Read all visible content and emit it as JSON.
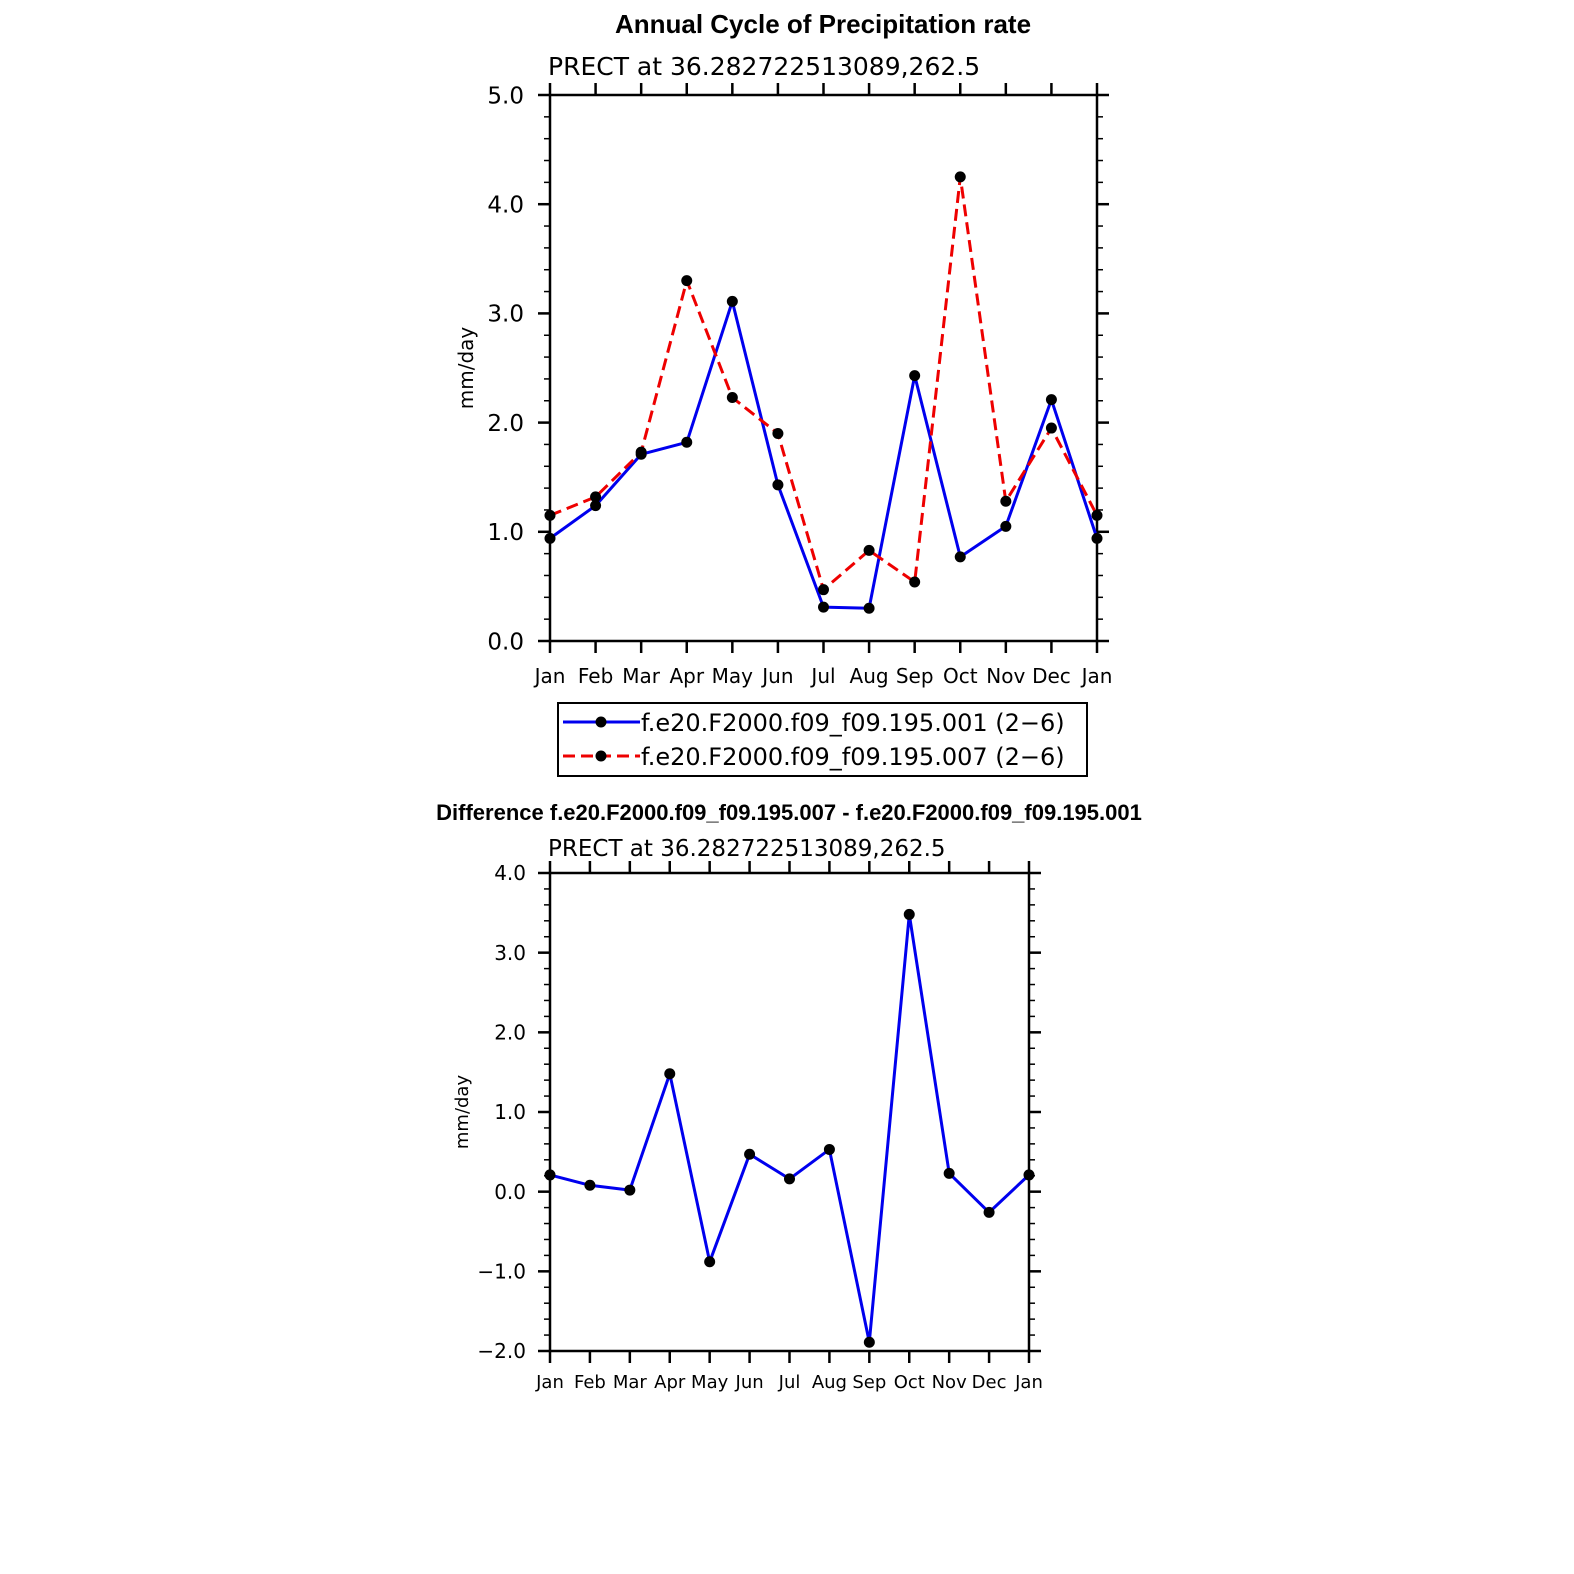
{
  "chart_data": [
    {
      "type": "line",
      "title": "Annual Cycle of Precipitation rate",
      "subtitle": "PRECT at 36.282722513089,262.5",
      "xlabel": "",
      "ylabel": "mm/day",
      "categories": [
        "Jan",
        "Feb",
        "Mar",
        "Apr",
        "May",
        "Jun",
        "Jul",
        "Aug",
        "Sep",
        "Oct",
        "Nov",
        "Dec",
        "Jan"
      ],
      "ylim": [
        0,
        5
      ],
      "yticks": [
        "0.0",
        "1.0",
        "2.0",
        "3.0",
        "4.0",
        "5.0"
      ],
      "series": [
        {
          "name": "f.e20.F2000.f09_f09.195.001",
          "legend_label": "f.e20.F2000.f09_f09.195.001 (2−6)",
          "color": "#0000ee",
          "dash": "solid",
          "values": [
            0.94,
            1.24,
            1.71,
            1.82,
            3.11,
            1.43,
            0.31,
            0.3,
            2.43,
            0.77,
            1.05,
            2.21,
            0.94
          ]
        },
        {
          "name": "f.e20.F2000.f09_f09.195.007",
          "legend_label": "f.e20.F2000.f09_f09.195.007 (2−6)",
          "color": "#ee0000",
          "dash": "dashed",
          "values": [
            1.15,
            1.32,
            1.73,
            3.3,
            2.23,
            1.9,
            0.47,
            0.83,
            0.54,
            4.25,
            1.28,
            1.95,
            1.15
          ]
        }
      ]
    },
    {
      "type": "line",
      "title": "Difference f.e20.F2000.f09_f09.195.007 - f.e20.F2000.f09_f09.195.001",
      "subtitle": "PRECT at 36.282722513089,262.5",
      "xlabel": "",
      "ylabel": "mm/day",
      "categories": [
        "Jan",
        "Feb",
        "Mar",
        "Apr",
        "May",
        "Jun",
        "Jul",
        "Aug",
        "Sep",
        "Oct",
        "Nov",
        "Dec",
        "Jan"
      ],
      "ylim": [
        -2,
        4
      ],
      "yticks": [
        "−2.0",
        "−1.0",
        "0.0",
        "1.0",
        "2.0",
        "3.0",
        "4.0"
      ],
      "series": [
        {
          "name": "difference",
          "color": "#0000ee",
          "dash": "solid",
          "values": [
            0.21,
            0.08,
            0.02,
            1.48,
            -0.88,
            0.47,
            0.16,
            0.53,
            -1.89,
            3.48,
            0.23,
            -0.26,
            0.21
          ]
        }
      ]
    }
  ]
}
